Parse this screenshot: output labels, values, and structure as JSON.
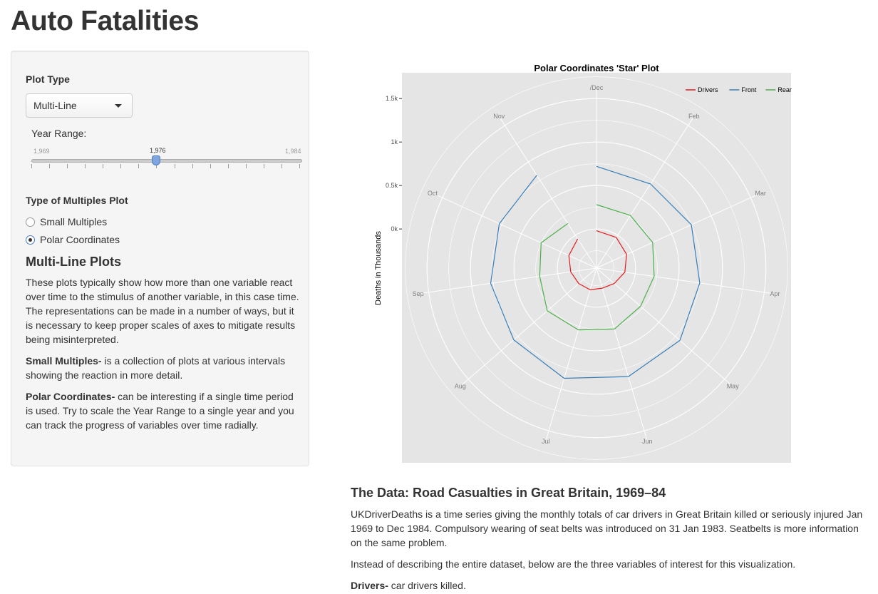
{
  "page": {
    "title": "Auto Fatalities"
  },
  "sidebar": {
    "plot_type_label": "Plot Type",
    "plot_type_value": "Multi-Line",
    "year_range_label": "Year Range:",
    "slider": {
      "min": "1,969",
      "max": "1,984",
      "value": "1,976",
      "min_value": 1969,
      "max_value": 1984,
      "current_value": 1976
    },
    "multiples_label": "Type of Multiples Plot",
    "radios": [
      {
        "label": "Small Multiples",
        "checked": false
      },
      {
        "label": "Polar Coordinates",
        "checked": true
      }
    ],
    "section_title": "Multi-Line Plots",
    "para1": "These plots typically show how more than one variable react over time to the stimulus of another variable, in this case time. The representations can be made in a number of ways, but it is necessary to keep proper scales of axes to mitigate results being misinterpreted.",
    "para2_bold": "Small Multiples-",
    "para2_rest": " is a collection of plots at various intervals showing the reaction in more detail.",
    "para3_bold": "Polar Coordinates-",
    "para3_rest": " can be interesting if a single time period is used. Try to scale the Year Range to a single year and you can track the progress of variables over time radially."
  },
  "data_section": {
    "title": "The Data: Road Casualties in Great Britain, 1969–84",
    "para1": "UKDriverDeaths is a time series giving the monthly totals of car drivers in Great Britain killed or seriously injured Jan 1969 to Dec 1984. Compulsory wearing of seat belts was introduced on 31 Jan 1983. Seatbelts is more information on the same problem.",
    "para2": "Instead of describing the entire dataset, below are the three variables of interest for this visualization.",
    "para3_bold": "Drivers-",
    "para3_rest": " car drivers killed."
  },
  "colors": {
    "drivers": "#e41a1c",
    "front": "#377eb8",
    "rear": "#4daf4a",
    "panel": "#e5e5e5"
  },
  "chart_data": {
    "type": "line",
    "coordinate_system": "polar",
    "title": "Polar Coordinates 'Star' Plot",
    "ylabel": "Deaths in Thousands",
    "y_ticks": [
      "0k",
      "0.5k",
      "1k",
      "1.5k"
    ],
    "ylim": [
      -0.45,
      1.6
    ],
    "categories": [
      "/Dec",
      "Feb",
      "Mar",
      "Apr",
      "May",
      "Jun",
      "Jul",
      "Aug",
      "Sep",
      "Oct",
      "Nov"
    ],
    "legend": "top-right",
    "series": [
      {
        "name": "Drivers",
        "color": "#e41a1c",
        "values": [
          -0.02,
          -0.03,
          -0.07,
          -0.12,
          -0.18,
          -0.21,
          -0.19,
          -0.18,
          -0.15,
          -0.1,
          -0.05
        ]
      },
      {
        "name": "Front",
        "color": "#377eb8",
        "values": [
          0.72,
          0.7,
          0.75,
          0.75,
          0.82,
          0.85,
          0.87,
          0.81,
          0.78,
          0.78,
          0.82
        ]
      },
      {
        "name": "Rear",
        "color": "#4daf4a",
        "values": [
          0.28,
          0.27,
          0.26,
          0.22,
          0.22,
          0.28,
          0.29,
          0.3,
          0.21,
          0.25,
          0.16
        ]
      }
    ]
  }
}
